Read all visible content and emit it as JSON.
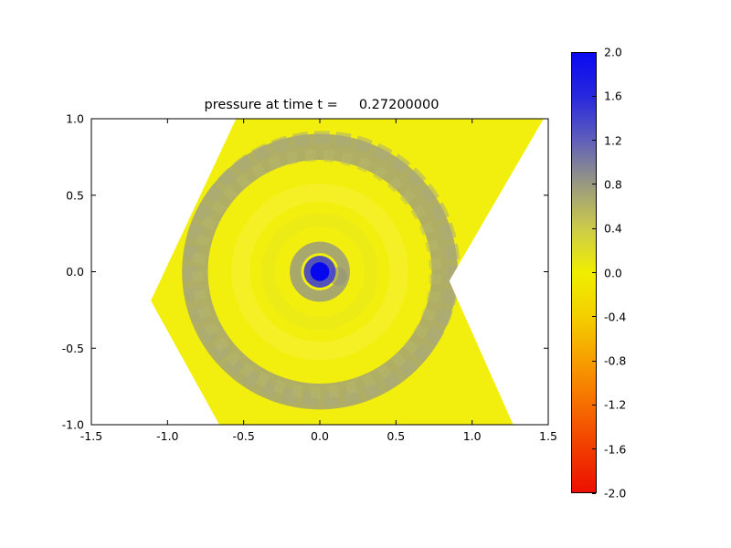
{
  "chart_data": {
    "type": "heatmap",
    "title": "pressure at time t =     0.27200000",
    "field_name": "pressure",
    "time": "0.27200000",
    "xlabel": "",
    "ylabel": "",
    "xlim": [
      -1.5,
      1.5
    ],
    "ylim": [
      -1.0,
      1.0
    ],
    "grid": false,
    "x_ticks": [
      -1.5,
      -1.0,
      -0.5,
      0.0,
      0.5,
      1.0,
      1.5
    ],
    "x_tick_labels": [
      "-1.5",
      "-1.0",
      "-0.5",
      "0.0",
      "0.5",
      "1.0",
      "1.5"
    ],
    "y_ticks": [
      -1.0,
      -0.5,
      0.0,
      0.5,
      1.0
    ],
    "y_tick_labels": [
      "-1.0",
      "-0.5",
      "0.0",
      "0.5",
      "1.0"
    ],
    "domain_polygon": [
      [
        -0.55,
        1.0
      ],
      [
        1.47,
        1.0
      ],
      [
        0.85,
        -0.06
      ],
      [
        1.27,
        -1.0
      ],
      [
        -0.66,
        -1.0
      ],
      [
        -1.11,
        -0.19
      ]
    ],
    "background_value": 0.1,
    "features": [
      {
        "name": "outer-gray-ring",
        "shape": "ring",
        "cx": 0.0,
        "cy": 0.0,
        "r": 0.82,
        "width": 0.17,
        "color": "#9d9d7a",
        "opacity": 0.8,
        "value": 0.75
      },
      {
        "name": "outer-gray-ring-blotch-a",
        "shape": "ring",
        "cx": 0.015,
        "cy": 0.02,
        "r": 0.86,
        "width": 0.09,
        "color": "#a9a97c",
        "opacity": 0.55,
        "value": 0.6,
        "dash": "16 7"
      },
      {
        "name": "outer-gray-ring-blotch-b",
        "shape": "ring",
        "cx": -0.02,
        "cy": -0.015,
        "r": 0.78,
        "width": 0.08,
        "color": "#b7b76a",
        "opacity": 0.5,
        "value": 0.5,
        "dash": "11 9"
      },
      {
        "name": "mid-yellow-ring",
        "shape": "ring",
        "cx": 0.0,
        "cy": 0.0,
        "r": 0.52,
        "width": 0.12,
        "color": "#f5f23c",
        "opacity": 0.5,
        "value": 0.1
      },
      {
        "name": "inner-pale-ring",
        "shape": "ring",
        "cx": 0.0,
        "cy": 0.0,
        "r": 0.34,
        "width": 0.09,
        "color": "#e9e81c",
        "opacity": 0.55,
        "value": 0.25
      },
      {
        "name": "core-gray-ring",
        "shape": "ring",
        "cx": 0.0,
        "cy": 0.0,
        "r": 0.16,
        "width": 0.075,
        "color": "#9b9b7d",
        "opacity": 0.85,
        "value": 0.7
      },
      {
        "name": "core-gray-smudge",
        "shape": "disc",
        "cx": 0.12,
        "cy": -0.03,
        "r": 0.06,
        "color": "#92927e",
        "opacity": 0.6,
        "value": 0.7
      },
      {
        "name": "peak-outer",
        "shape": "disc",
        "cx": 0.0,
        "cy": 0.0,
        "r": 0.105,
        "color": "#4040cc",
        "opacity": 0.9,
        "value": 1.3
      },
      {
        "name": "peak-core",
        "shape": "disc",
        "cx": 0.0,
        "cy": 0.0,
        "r": 0.062,
        "color": "#0707ee",
        "opacity": 1.0,
        "value": 2.0
      }
    ],
    "colorbar": {
      "min": -2.0,
      "max": 2.0,
      "ticks": [
        2.0,
        1.6,
        1.2,
        0.8,
        0.4,
        0.0,
        -0.4,
        -0.8,
        -1.2,
        -1.6,
        -2.0
      ],
      "tick_labels": [
        "2.0",
        "1.6",
        "1.2",
        "0.8",
        "0.4",
        "0.0",
        "-0.4",
        "-0.8",
        "-1.2",
        "-1.6",
        "-2.0"
      ],
      "stops": [
        {
          "value": -2.0,
          "color": "#ec1000"
        },
        {
          "value": -1.6,
          "color": "#f23c00"
        },
        {
          "value": -1.2,
          "color": "#f66e00"
        },
        {
          "value": -0.8,
          "color": "#f79e00"
        },
        {
          "value": -0.4,
          "color": "#f3cf00"
        },
        {
          "value": 0.0,
          "color": "#f0ee00"
        },
        {
          "value": 0.4,
          "color": "#cccb4a"
        },
        {
          "value": 0.8,
          "color": "#9a9a80"
        },
        {
          "value": 1.2,
          "color": "#6060bb"
        },
        {
          "value": 1.6,
          "color": "#2828dd"
        },
        {
          "value": 2.0,
          "color": "#0a0af2"
        }
      ]
    }
  },
  "colors": {
    "field_background": "#f2ef0e",
    "axis": "#000000",
    "figure_background": "#ffffff"
  }
}
